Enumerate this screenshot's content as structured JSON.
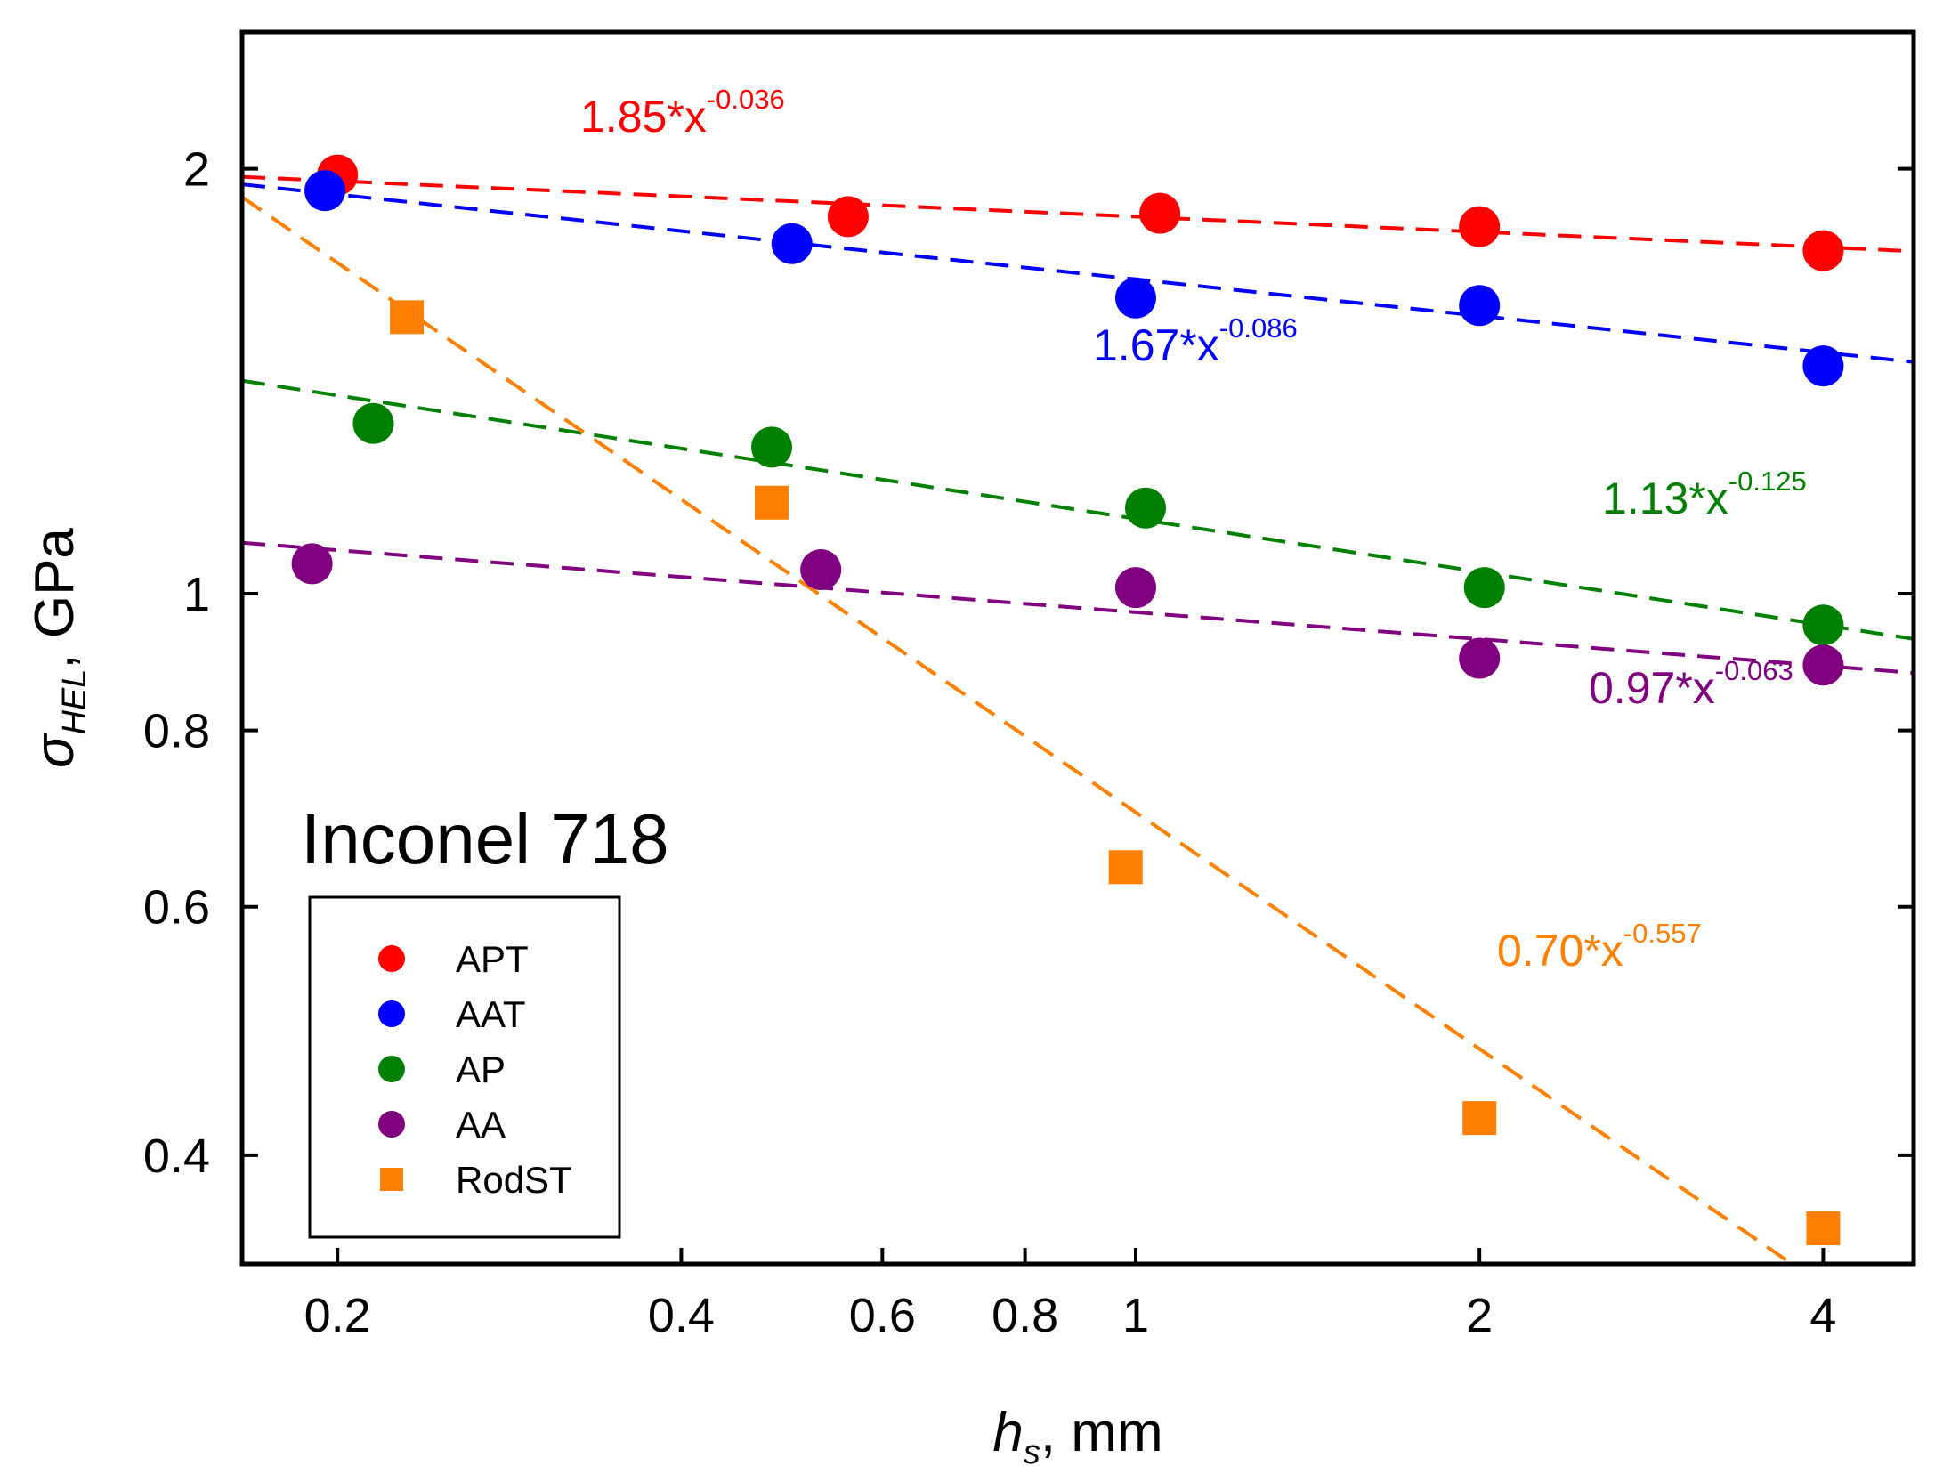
{
  "chart_data": {
    "type": "scatter",
    "x_scale": "log",
    "y_scale": "log",
    "xlim": [
      0.165,
      4.8
    ],
    "ylim": [
      0.335,
      2.5
    ],
    "x_ticks": [
      {
        "value": 0.2,
        "label": "0.2"
      },
      {
        "value": 0.4,
        "label": "0.4"
      },
      {
        "value": 0.6,
        "label": "0.6"
      },
      {
        "value": 0.8,
        "label": "0.8"
      },
      {
        "value": 1,
        "label": "1"
      },
      {
        "value": 2,
        "label": "2"
      },
      {
        "value": 4,
        "label": "4"
      }
    ],
    "y_ticks": [
      {
        "value": 0.4,
        "label": "0.4"
      },
      {
        "value": 0.6,
        "label": "0.6"
      },
      {
        "value": 0.8,
        "label": "0.8"
      },
      {
        "value": 1,
        "label": "1"
      },
      {
        "value": 2,
        "label": "2"
      }
    ],
    "xlabel": {
      "main": "h",
      "sub": "s",
      "rest": ", mm"
    },
    "ylabel": {
      "main": "σ",
      "sub": "HEL",
      "rest": ", GPa"
    },
    "annotation_title": "Inconel 718",
    "legend_position": "lower-left",
    "series": [
      {
        "name": "APT",
        "color": "#ff0000",
        "marker": "circle",
        "x": [
          0.2,
          0.56,
          1.05,
          2.0,
          4.0
        ],
        "y": [
          1.98,
          1.85,
          1.86,
          1.82,
          1.75
        ],
        "fit": {
          "a": 1.85,
          "b": -0.036,
          "label_main": "1.85*x",
          "label_exp": "-0.036"
        }
      },
      {
        "name": "AAT",
        "color": "#0000ff",
        "marker": "circle",
        "x": [
          0.195,
          0.5,
          1.0,
          2.0,
          4.0
        ],
        "y": [
          1.93,
          1.77,
          1.62,
          1.6,
          1.45
        ],
        "fit": {
          "a": 1.67,
          "b": -0.086,
          "label_main": "1.67*x",
          "label_exp": "-0.086"
        }
      },
      {
        "name": "AP",
        "color": "#008000",
        "marker": "circle",
        "x": [
          0.215,
          0.48,
          1.02,
          2.02,
          4.0
        ],
        "y": [
          1.32,
          1.27,
          1.15,
          1.01,
          0.95
        ],
        "fit": {
          "a": 1.13,
          "b": -0.125,
          "label_main": "1.13*x",
          "label_exp": "-0.125"
        }
      },
      {
        "name": "AA",
        "color": "#800080",
        "marker": "circle",
        "x": [
          0.19,
          0.53,
          1.0,
          2.0,
          4.0
        ],
        "y": [
          1.05,
          1.04,
          1.01,
          0.9,
          0.89
        ],
        "fit": {
          "a": 0.97,
          "b": -0.063,
          "label_main": "0.97*x",
          "label_exp": "-0.063"
        }
      },
      {
        "name": "RodST",
        "color": "#ff8000",
        "marker": "square",
        "x": [
          0.23,
          0.48,
          0.98,
          2.0,
          4.0
        ],
        "y": [
          1.57,
          1.16,
          0.64,
          0.425,
          0.355
        ],
        "fit": {
          "a": 0.7,
          "b": -0.557,
          "label_main": "0.70*x",
          "label_exp": "-0.557"
        }
      }
    ]
  }
}
